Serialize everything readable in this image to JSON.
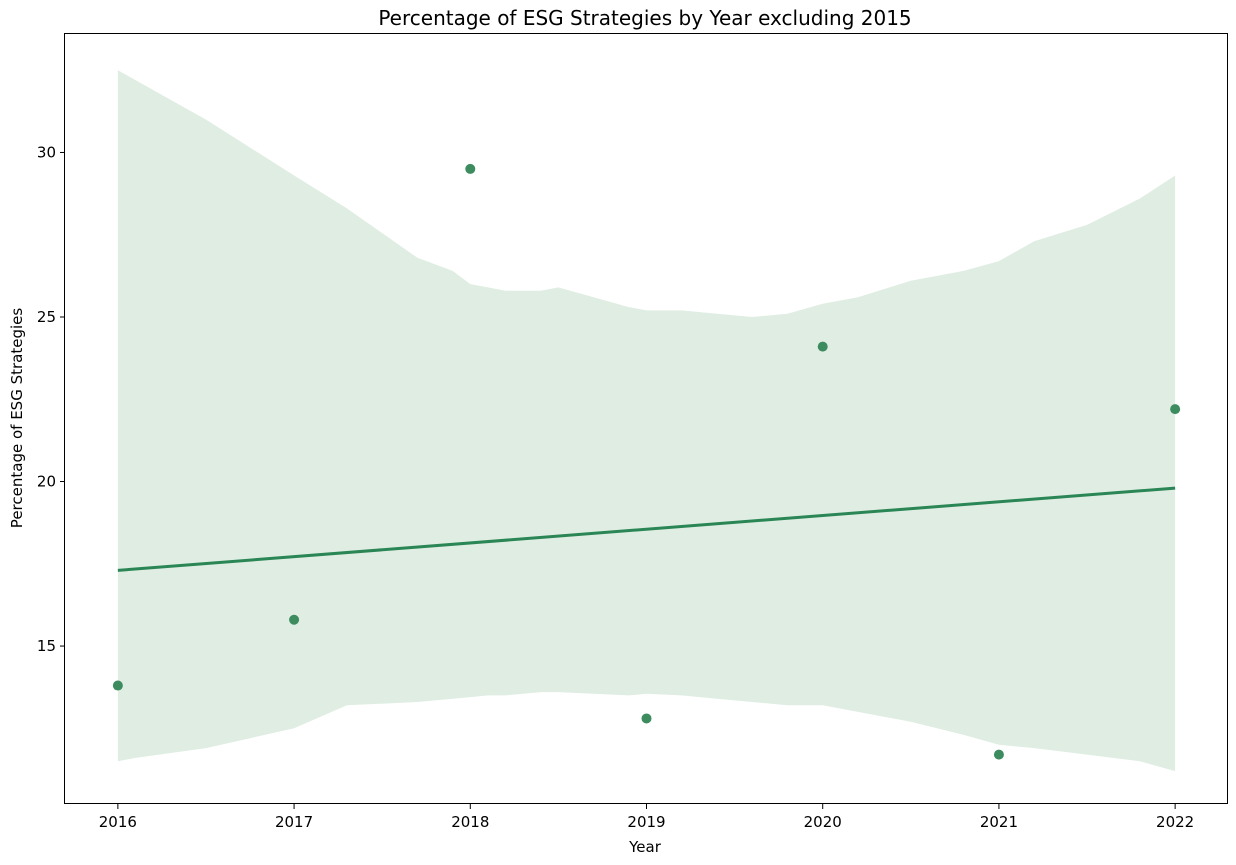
{
  "chart_data": {
    "type": "scatter",
    "title": "Percentage of ESG Strategies by Year  excluding 2015",
    "xlabel": "Year",
    "ylabel": "Percentage of ESG Strategies",
    "x_ticks": [
      "2016",
      "2017",
      "2018",
      "2019",
      "2020",
      "2021",
      "2022"
    ],
    "y_ticks": [
      "15",
      "20",
      "25",
      "30"
    ],
    "xlim": [
      2015.7,
      2022.3
    ],
    "ylim": [
      10.2,
      33.6
    ],
    "grid": false,
    "legend": "none",
    "points": [
      {
        "x": 2016,
        "y": 13.8
      },
      {
        "x": 2017,
        "y": 15.8
      },
      {
        "x": 2018,
        "y": 29.5
      },
      {
        "x": 2019,
        "y": 12.8
      },
      {
        "x": 2020,
        "y": 24.1
      },
      {
        "x": 2021,
        "y": 11.7
      },
      {
        "x": 2022,
        "y": 22.2
      }
    ],
    "regression_line": {
      "x": [
        2016,
        2022
      ],
      "y": [
        17.3,
        19.8
      ]
    },
    "confidence_band": {
      "x": [
        2016,
        2016.1,
        2016.5,
        2017,
        2017.3,
        2017.7,
        2017.9,
        2018,
        2018.1,
        2018.2,
        2018.4,
        2018.5,
        2018.7,
        2018.9,
        2019,
        2019.2,
        2019.4,
        2019.6,
        2019.8,
        2020,
        2020.2,
        2020.5,
        2020.8,
        2021,
        2021.2,
        2021.5,
        2021.8,
        2022
      ],
      "upper": [
        32.5,
        32.2,
        31.0,
        29.3,
        28.3,
        26.8,
        26.4,
        26.0,
        25.9,
        25.8,
        25.8,
        25.9,
        25.6,
        25.3,
        25.2,
        25.2,
        25.1,
        25.0,
        25.1,
        25.4,
        25.6,
        26.1,
        26.4,
        26.7,
        27.3,
        27.8,
        28.6,
        29.3
      ],
      "lower": [
        11.5,
        11.6,
        11.9,
        12.5,
        13.2,
        13.3,
        13.4,
        13.45,
        13.5,
        13.5,
        13.6,
        13.6,
        13.55,
        13.5,
        13.55,
        13.5,
        13.4,
        13.3,
        13.2,
        13.2,
        13.0,
        12.7,
        12.3,
        12.0,
        11.9,
        11.7,
        11.5,
        11.2
      ]
    },
    "colors": {
      "point": "#3d8c5f",
      "line": "#2a8655",
      "band": "#dfede3"
    }
  }
}
